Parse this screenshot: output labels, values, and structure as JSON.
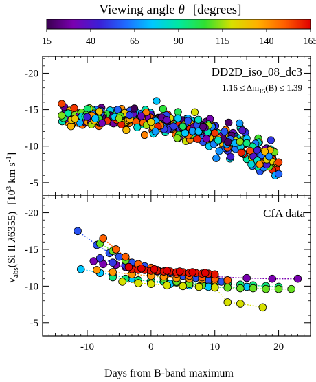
{
  "colorbar": {
    "title_text": "Viewing angle ",
    "title_symbol": "θ",
    "title_unit": "[degrees]",
    "ticks": [
      "15",
      "40",
      "65",
      "90",
      "115",
      "140",
      "165"
    ],
    "range": [
      15,
      165
    ],
    "colormap": "rainbow",
    "colormap_stops": [
      "#3a0050",
      "#7a00b0",
      "#3b1fd6",
      "#1f6bff",
      "#00c8ff",
      "#00e8a0",
      "#30e030",
      "#d6e000",
      "#ffb000",
      "#ff6000",
      "#e00000"
    ]
  },
  "shared_axis": {
    "xlabel": "Days from B-band maximum",
    "xticks": [
      "-10",
      "0",
      "10",
      "20"
    ],
    "xlim": [
      -17,
      25
    ],
    "ylabel_prefix": "v",
    "ylabel_sub": "abs",
    "ylabel_main": "(Si II ",
    "ylabel_lambda": "λ",
    "ylabel_wave": "6355)",
    "unit_open": "[10",
    "unit_sup1": "3",
    "unit_km": " km s",
    "unit_sup2": "-1",
    "unit_close": "]"
  },
  "chart_data": [
    {
      "type": "scatter",
      "panel": "top",
      "title": "DD2D_iso_08_dc3",
      "subtitle_prefix": "1.16 ≤ ",
      "subtitle_delta": "Δm",
      "subtitle_sub": "15",
      "subtitle_suffix": "(B) ≤ 1.39",
      "yticks": [
        "-20",
        "-15",
        "-10",
        "-5"
      ],
      "ylim": [
        -3.2,
        -22.3
      ],
      "model_trend": {
        "x_start": -14,
        "x_end": 20,
        "velocity_start": -14.0,
        "velocity_end": -7.5,
        "curvature": 2.8,
        "n_points": 420,
        "scatter_sigma": 0.9
      },
      "approx_points": [
        {
          "x": -14,
          "y": -14.2
        },
        {
          "x": -14,
          "y": -15.8
        },
        {
          "x": -10,
          "y": -14.0
        },
        {
          "x": -5,
          "y": -13.8
        },
        {
          "x": 0,
          "y": -13.3
        },
        {
          "x": 5,
          "y": -12.7
        },
        {
          "x": 10,
          "y": -11.8
        },
        {
          "x": 15,
          "y": -10.4
        },
        {
          "x": 20,
          "y": -7.8
        },
        {
          "x": 20,
          "y": -6.2
        }
      ]
    },
    {
      "type": "scatter",
      "panel": "bottom",
      "title": "CfA data",
      "yticks": [
        "-20",
        "-15",
        "-10",
        "-5"
      ],
      "ylim": [
        -3.2,
        -22.3
      ],
      "series": [
        {
          "angle": 30,
          "x": [
            -9.0,
            -7.5,
            -5.5,
            -4.0,
            -2.5,
            -1.0,
            1.0,
            3.0,
            6.0,
            10.0,
            15.0,
            19.0,
            23.0
          ],
          "y": [
            -13.4,
            -13.0,
            -12.9,
            -12.6,
            -12.4,
            -12.2,
            -12.0,
            -11.8,
            -11.5,
            -11.3,
            -11.1,
            -11.0,
            -11.0
          ]
        },
        {
          "angle": 50,
          "x": [
            -8.0,
            -6.0,
            -4.0,
            -2.0,
            0.0,
            2.0
          ],
          "y": [
            -13.8,
            -13.2,
            -12.8,
            -12.5,
            -12.2,
            -12.0
          ]
        },
        {
          "angle": 55,
          "x": [
            -11.5,
            -8.5,
            -6.5,
            -5.0,
            -3.0,
            -1.0,
            1.0,
            3.0,
            5.0,
            7.0,
            9.0,
            11.0
          ],
          "y": [
            -17.5,
            -15.6,
            -14.5,
            -14.0,
            -13.2,
            -12.7,
            -12.2,
            -11.8,
            -11.4,
            -11.1,
            -10.8,
            -10.6
          ]
        },
        {
          "angle": 75,
          "x": [
            -11.0,
            -8.0,
            -6.0,
            -3.0,
            0.0,
            3.0,
            6.0,
            9.0,
            12.0,
            15.0
          ],
          "y": [
            -12.3,
            -11.8,
            -11.5,
            -11.0,
            -10.6,
            -10.3,
            -10.1,
            -9.9,
            -9.8,
            -9.9
          ]
        },
        {
          "angle": 95,
          "x": [
            -6.0,
            -4.0,
            -2.0,
            0.0,
            2.0,
            4.0,
            6.0,
            8.0,
            10.0,
            12.0,
            14.0,
            16.0,
            18.0,
            20.0
          ],
          "y": [
            -11.2,
            -11.0,
            -10.8,
            -10.7,
            -10.6,
            -10.5,
            -10.4,
            -10.4,
            -10.3,
            -10.3,
            -10.2,
            -10.1,
            -10.0,
            -9.9
          ]
        },
        {
          "angle": 110,
          "x": [
            -8.0,
            -6.0,
            -4.0,
            -2.0,
            0.0,
            2.0,
            4.0,
            6.0,
            8.0,
            10.0,
            12.0,
            14.0,
            16.0,
            18.0,
            20.0,
            22.0
          ],
          "y": [
            -15.8,
            -14.8,
            -13.5,
            -12.4,
            -11.6,
            -11.0,
            -10.6,
            -10.3,
            -10.1,
            -9.9,
            -9.8,
            -9.7,
            -9.7,
            -9.6,
            -9.6,
            -9.6
          ]
        },
        {
          "angle": 120,
          "x": [
            -4.5,
            -2.0,
            0.0,
            2.5,
            5.0,
            7.5,
            10.0,
            12.0,
            14.0,
            17.5
          ],
          "y": [
            -10.6,
            -10.4,
            -10.3,
            -10.1,
            -10.0,
            -9.9,
            -9.8,
            -7.8,
            -7.6,
            -7.1
          ]
        },
        {
          "angle": 140,
          "x": [
            -8.5,
            -6.0,
            -3.0,
            0.0,
            2.0,
            4.0,
            6.0,
            8.0,
            10.0
          ],
          "y": [
            -12.2,
            -11.9,
            -11.6,
            -11.4,
            -11.3,
            -11.1,
            -11.0,
            -10.9,
            -10.8
          ]
        },
        {
          "angle": 150,
          "x": [
            -7.5,
            -5.5,
            -4.0,
            -2.0,
            0.0,
            2.0,
            4.0,
            6.0,
            8.0,
            10.0,
            12.0
          ],
          "y": [
            -16.5,
            -15.0,
            -14.0,
            -13.0,
            -12.5,
            -12.0,
            -11.7,
            -11.4,
            -11.2,
            -11.0,
            -10.8
          ]
        },
        {
          "angle": 162,
          "x": [
            -3.0,
            -2.0,
            -1.0,
            0.0,
            1.0,
            2.0,
            3.0,
            4.0,
            5.0,
            6.0,
            7.0,
            8.0,
            9.0,
            10.0
          ],
          "y": [
            -12.3,
            -12.2,
            -12.2,
            -12.1,
            -12.1,
            -12.0,
            -12.0,
            -11.9,
            -11.9,
            -11.8,
            -11.8,
            -11.7,
            -11.7,
            -11.6
          ]
        },
        {
          "angle": 165,
          "x": [
            -3.5,
            -1.5,
            0.5,
            2.5,
            4.5,
            6.5,
            8.5
          ],
          "y": [
            -12.6,
            -12.4,
            -12.3,
            -12.1,
            -12.0,
            -11.9,
            -11.8
          ]
        }
      ]
    }
  ]
}
